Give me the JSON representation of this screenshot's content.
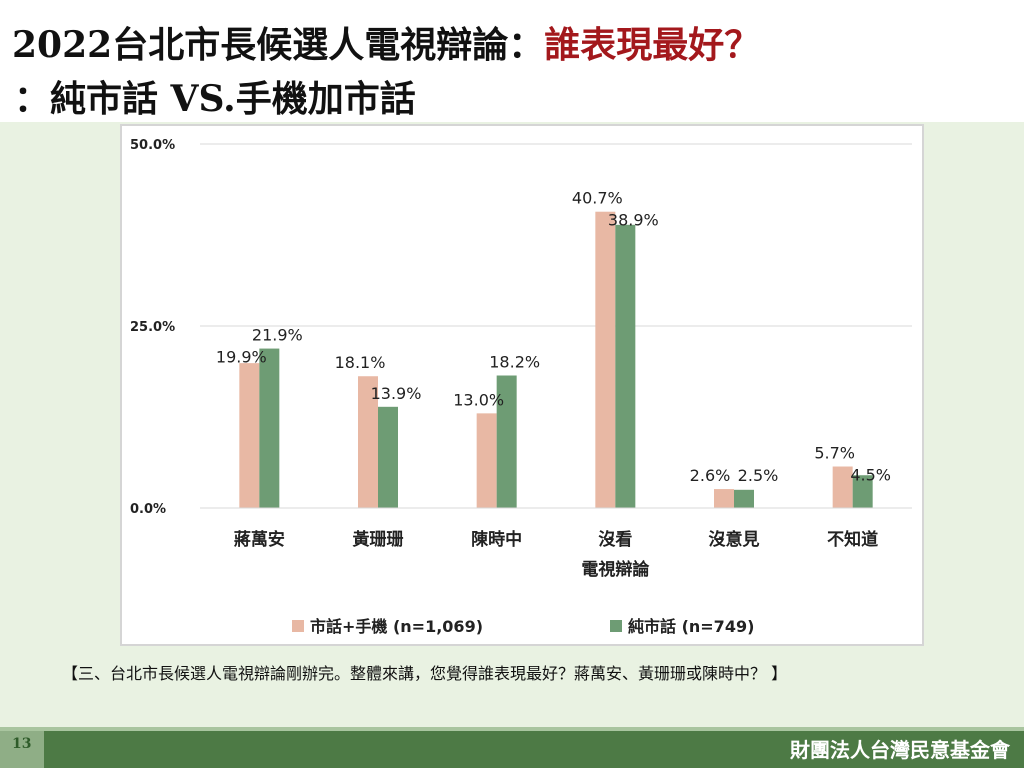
{
  "header": {
    "title_part1": "2022台北市長候選人電視辯論：",
    "title_accent": "誰表現最好？",
    "title_line2": "：純市話 VS.手機加市話"
  },
  "chart_data": {
    "type": "bar",
    "categories": [
      "蔣萬安",
      "黃珊珊",
      "陳時中",
      "沒看\n電視辯論",
      "沒意見",
      "不知道"
    ],
    "series": [
      {
        "name": "市話+手機 (n=1,069)",
        "color": "#e8b8a4",
        "values": [
          19.9,
          18.1,
          13.0,
          40.7,
          2.6,
          5.7
        ]
      },
      {
        "name": "純市話 (n=749)",
        "color": "#6e9c74",
        "values": [
          21.9,
          13.9,
          18.2,
          38.9,
          2.5,
          4.5
        ]
      }
    ],
    "value_labels": [
      [
        "19.9%",
        "18.1%",
        "13.0%",
        "40.7%",
        "2.6%",
        "5.7%"
      ],
      [
        "21.9%",
        "13.9%",
        "18.2%",
        "38.9%",
        "2.5%",
        "4.5%"
      ]
    ],
    "yticks": [
      "0.0%",
      "25.0%",
      "50.0%"
    ],
    "ytick_values": [
      0,
      25,
      50
    ],
    "ylim": [
      0,
      50
    ],
    "grid": true,
    "legend_position": "bottom"
  },
  "survey_question": "【三、台北市長候選人電視辯論剛辦完。整體來講，您覺得誰表現最好？蔣萬安、黃珊珊或陳時中？ 】",
  "footer": {
    "page_number": "13",
    "organization": "財團法人台灣民意基金會"
  },
  "colors": {
    "accent": "#a3181c",
    "background": "#e9f2e2",
    "footer_bar": "#4d7a45"
  }
}
